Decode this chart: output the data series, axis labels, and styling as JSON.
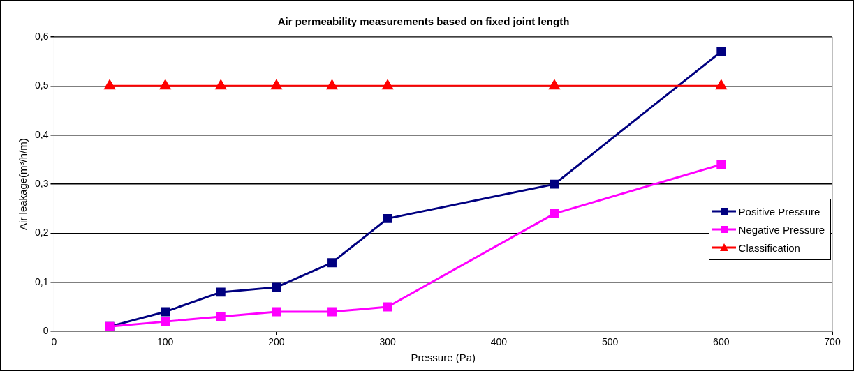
{
  "chart_data": {
    "type": "line",
    "title": "Air permeability measurements based on fixed joint length",
    "xlabel": "Pressure (Pa)",
    "ylabel": "Air leakage(m³/h/m)",
    "x": [
      50,
      100,
      150,
      200,
      250,
      300,
      450,
      600
    ],
    "series": [
      {
        "name": "Positive Pressure",
        "color": "#000080",
        "marker": "square",
        "values": [
          0.01,
          0.04,
          0.08,
          0.09,
          0.14,
          0.23,
          0.3,
          0.57
        ]
      },
      {
        "name": "Negative Pressure",
        "color": "#ff00ff",
        "marker": "square",
        "values": [
          0.01,
          0.02,
          0.03,
          0.04,
          0.04,
          0.05,
          0.24,
          0.34
        ]
      },
      {
        "name": "Classification",
        "color": "#ff0000",
        "marker": "triangle",
        "values": [
          0.5,
          0.5,
          0.5,
          0.5,
          0.5,
          0.5,
          0.5,
          0.5
        ]
      }
    ],
    "xlim": [
      0,
      700
    ],
    "xticks": [
      0,
      100,
      200,
      300,
      400,
      500,
      600,
      700
    ],
    "ylim": [
      0,
      0.6
    ],
    "yticks": [
      0,
      {
        "value": 0.1,
        "label": "0,1"
      },
      {
        "value": 0.2,
        "label": "0,2"
      },
      {
        "value": 0.3,
        "label": "0,3"
      },
      {
        "value": 0.4,
        "label": "0,4"
      },
      {
        "value": 0.5,
        "label": "0,5"
      },
      {
        "value": 0.6,
        "label": "0,6"
      }
    ],
    "grid": "y",
    "legend": "right",
    "line_style": "solid"
  }
}
